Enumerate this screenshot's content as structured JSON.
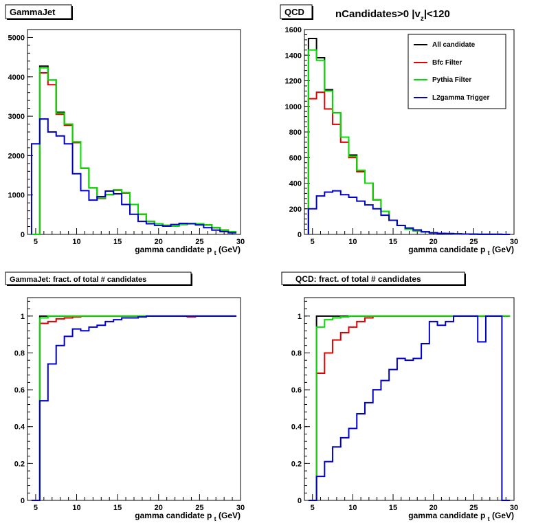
{
  "heading": {
    "prefix": "nCandidates>0 |v",
    "sub": "z",
    "suffix": "|<120"
  },
  "legend": {
    "entries": [
      {
        "label": "All candidate",
        "color": "#000000"
      },
      {
        "label": "Bfc Filter",
        "color": "#e00000"
      },
      {
        "label": "Pythia Filter",
        "color": "#00e000"
      },
      {
        "label": "L2gamma Trigger",
        "color": "#0000cc"
      }
    ]
  },
  "chart_data": [
    {
      "type": "histogram",
      "title": "GammaJet",
      "xlabel": "gamma candidate p",
      "xlabel_sub": "t",
      "xlabel_unit": "(GeV)",
      "xlim": [
        4,
        30
      ],
      "ylim": [
        0,
        5200
      ],
      "xticks": [
        5,
        10,
        15,
        20,
        25,
        30
      ],
      "yticks": [
        0,
        1000,
        2000,
        3000,
        4000,
        5000
      ],
      "bin_edges": [
        4.5,
        5.5,
        6.5,
        7.5,
        8.5,
        9.5,
        10.5,
        11.5,
        12.5,
        13.5,
        14.5,
        15.5,
        16.5,
        17.5,
        18.5,
        19.5,
        20.5,
        21.5,
        22.5,
        23.5,
        24.5,
        25.5,
        26.5,
        27.5,
        28.5,
        29.5
      ],
      "series": [
        {
          "name": "All candidate",
          "color": "#000000",
          "values": [
            0,
            4270,
            3920,
            3100,
            2800,
            2350,
            1680,
            1180,
            920,
            1010,
            1130,
            1060,
            760,
            510,
            330,
            270,
            230,
            210,
            250,
            280,
            270,
            240,
            170,
            110,
            70
          ]
        },
        {
          "name": "Bfc Filter",
          "color": "#e00000",
          "values": [
            0,
            4100,
            3800,
            3050,
            2770,
            2330,
            1680,
            1180,
            910,
            1010,
            1120,
            1050,
            760,
            510,
            330,
            270,
            230,
            210,
            250,
            280,
            270,
            240,
            170,
            110,
            70
          ]
        },
        {
          "name": "Pythia Filter",
          "color": "#00e000",
          "values": [
            0,
            4230,
            3920,
            3080,
            2800,
            2350,
            1680,
            1180,
            920,
            1010,
            1130,
            1060,
            760,
            510,
            330,
            270,
            230,
            210,
            250,
            280,
            270,
            240,
            170,
            110,
            70
          ]
        },
        {
          "name": "L2gamma Trigger",
          "color": "#0000cc",
          "values": [
            2300,
            2930,
            2600,
            2500,
            2300,
            1540,
            1110,
            870,
            960,
            1100,
            1030,
            760,
            510,
            330,
            270,
            230,
            210,
            250,
            280,
            270,
            240,
            170,
            110,
            70,
            40
          ]
        }
      ]
    },
    {
      "type": "histogram",
      "title": "QCD",
      "xlabel": "gamma candidate p",
      "xlabel_sub": "t",
      "xlabel_unit": "(GeV)",
      "xlim": [
        4,
        30
      ],
      "ylim": [
        0,
        1600
      ],
      "xticks": [
        5,
        10,
        15,
        20,
        25,
        30
      ],
      "yticks": [
        0,
        200,
        400,
        600,
        800,
        1000,
        1200,
        1400,
        1600
      ],
      "bin_edges": [
        4.5,
        5.5,
        6.5,
        7.5,
        8.5,
        9.5,
        10.5,
        11.5,
        12.5,
        13.5,
        14.5,
        15.5,
        16.5,
        17.5,
        18.5,
        19.5,
        20.5,
        21.5,
        22.5,
        23.5,
        24.5,
        25.5,
        26.5,
        27.5,
        28.5,
        29.5
      ],
      "series": [
        {
          "name": "All candidate",
          "color": "#000000",
          "values": [
            1530,
            1380,
            1130,
            950,
            760,
            620,
            500,
            400,
            270,
            180,
            110,
            70,
            40,
            28,
            20,
            12,
            8,
            6,
            4,
            3,
            2,
            1,
            1,
            1,
            0
          ]
        },
        {
          "name": "Bfc Filter",
          "color": "#e00000",
          "values": [
            1060,
            1110,
            980,
            860,
            720,
            600,
            490,
            400,
            270,
            180,
            110,
            70,
            40,
            28,
            20,
            12,
            8,
            6,
            4,
            3,
            2,
            1,
            1,
            1,
            0
          ]
        },
        {
          "name": "Pythia Filter",
          "color": "#00e000",
          "values": [
            1440,
            1360,
            1120,
            950,
            760,
            610,
            500,
            400,
            270,
            180,
            110,
            70,
            40,
            28,
            20,
            12,
            8,
            6,
            4,
            3,
            2,
            1,
            1,
            1,
            0
          ]
        },
        {
          "name": "L2gamma Trigger",
          "color": "#0000cc",
          "values": [
            200,
            300,
            330,
            340,
            310,
            290,
            260,
            230,
            200,
            150,
            110,
            70,
            50,
            35,
            20,
            12,
            8,
            6,
            4,
            3,
            2,
            1,
            1,
            1,
            0
          ]
        }
      ]
    },
    {
      "type": "histogram",
      "title": "GammaJet: fract. of total # candidates",
      "xlabel": "gamma candidate p",
      "xlabel_sub": "t",
      "xlabel_unit": "(GeV)",
      "xlim": [
        4,
        30
      ],
      "ylim": [
        0,
        1.1
      ],
      "xticks": [
        5,
        10,
        15,
        20,
        25,
        30
      ],
      "yticks": [
        0,
        0.2,
        0.4,
        0.6,
        0.8,
        1
      ],
      "bin_edges": [
        4.5,
        5.5,
        6.5,
        7.5,
        8.5,
        9.5,
        10.5,
        11.5,
        12.5,
        13.5,
        14.5,
        15.5,
        16.5,
        17.5,
        18.5,
        19.5,
        20.5,
        21.5,
        22.5,
        23.5,
        24.5,
        25.5,
        26.5,
        27.5,
        28.5,
        29.5
      ],
      "series": [
        {
          "name": "All candidate",
          "color": "#000000",
          "values": [
            0,
            1,
            1,
            1,
            1,
            1,
            1,
            1,
            1,
            1,
            1,
            1,
            1,
            1,
            1,
            1,
            1,
            1,
            1,
            1,
            1,
            1,
            1,
            1,
            1
          ]
        },
        {
          "name": "Bfc Filter",
          "color": "#e00000",
          "values": [
            0,
            0.96,
            0.97,
            0.985,
            0.99,
            0.995,
            1,
            1,
            1,
            1,
            1,
            1,
            1,
            1,
            1,
            1,
            1,
            1,
            1,
            0.995,
            1,
            1,
            1,
            1,
            1
          ]
        },
        {
          "name": "Pythia Filter",
          "color": "#00e000",
          "values": [
            0,
            0.99,
            1,
            1,
            1,
            1,
            1,
            1,
            1,
            1,
            1,
            1,
            1,
            1,
            1,
            1,
            1,
            1,
            1,
            1,
            1,
            1,
            1,
            1,
            1
          ]
        },
        {
          "name": "L2gamma Trigger",
          "color": "#0000cc",
          "values": [
            0,
            0.54,
            0.74,
            0.84,
            0.89,
            0.93,
            0.92,
            0.94,
            0.95,
            0.97,
            0.98,
            0.99,
            0.99,
            0.995,
            1,
            1,
            1,
            1,
            1,
            1,
            1,
            1,
            1,
            1,
            1
          ]
        }
      ]
    },
    {
      "type": "histogram",
      "title": "QCD: fract. of total # candidates",
      "xlabel": "gamma candidate p",
      "xlabel_sub": "t",
      "xlabel_unit": "(GeV)",
      "xlim": [
        4,
        30
      ],
      "ylim": [
        0,
        1.1
      ],
      "xticks": [
        5,
        10,
        15,
        20,
        25,
        30
      ],
      "yticks": [
        0,
        0.2,
        0.4,
        0.6,
        0.8,
        1
      ],
      "bin_edges": [
        4.5,
        5.5,
        6.5,
        7.5,
        8.5,
        9.5,
        10.5,
        11.5,
        12.5,
        13.5,
        14.5,
        15.5,
        16.5,
        17.5,
        18.5,
        19.5,
        20.5,
        21.5,
        22.5,
        23.5,
        24.5,
        25.5,
        26.5,
        27.5,
        28.5,
        29.5
      ],
      "series": [
        {
          "name": "All candidate",
          "color": "#000000",
          "values": [
            0,
            1,
            1,
            1,
            1,
            1,
            1,
            1,
            1,
            1,
            1,
            1,
            1,
            1,
            1,
            1,
            1,
            1,
            1,
            1,
            1,
            1,
            1,
            1,
            1
          ]
        },
        {
          "name": "Bfc Filter",
          "color": "#e00000",
          "values": [
            0,
            0.69,
            0.8,
            0.87,
            0.91,
            0.94,
            0.97,
            0.99,
            1,
            1,
            1,
            1,
            1,
            1,
            1,
            1,
            1,
            1,
            1,
            1,
            1,
            1,
            1,
            1,
            1
          ]
        },
        {
          "name": "Pythia Filter",
          "color": "#00e000",
          "values": [
            0,
            0.94,
            0.98,
            0.99,
            0.995,
            1,
            1,
            1,
            1,
            1,
            1,
            1,
            1,
            1,
            1,
            1,
            1,
            1,
            1,
            1,
            1,
            1,
            1,
            1,
            1
          ]
        },
        {
          "name": "L2gamma Trigger",
          "color": "#0000cc",
          "values": [
            0,
            0.13,
            0.21,
            0.29,
            0.34,
            0.39,
            0.47,
            0.53,
            0.6,
            0.65,
            0.71,
            0.77,
            0.76,
            0.77,
            0.85,
            0.97,
            0.95,
            0.97,
            1,
            1,
            1,
            0.86,
            1,
            1,
            0
          ]
        }
      ]
    }
  ]
}
